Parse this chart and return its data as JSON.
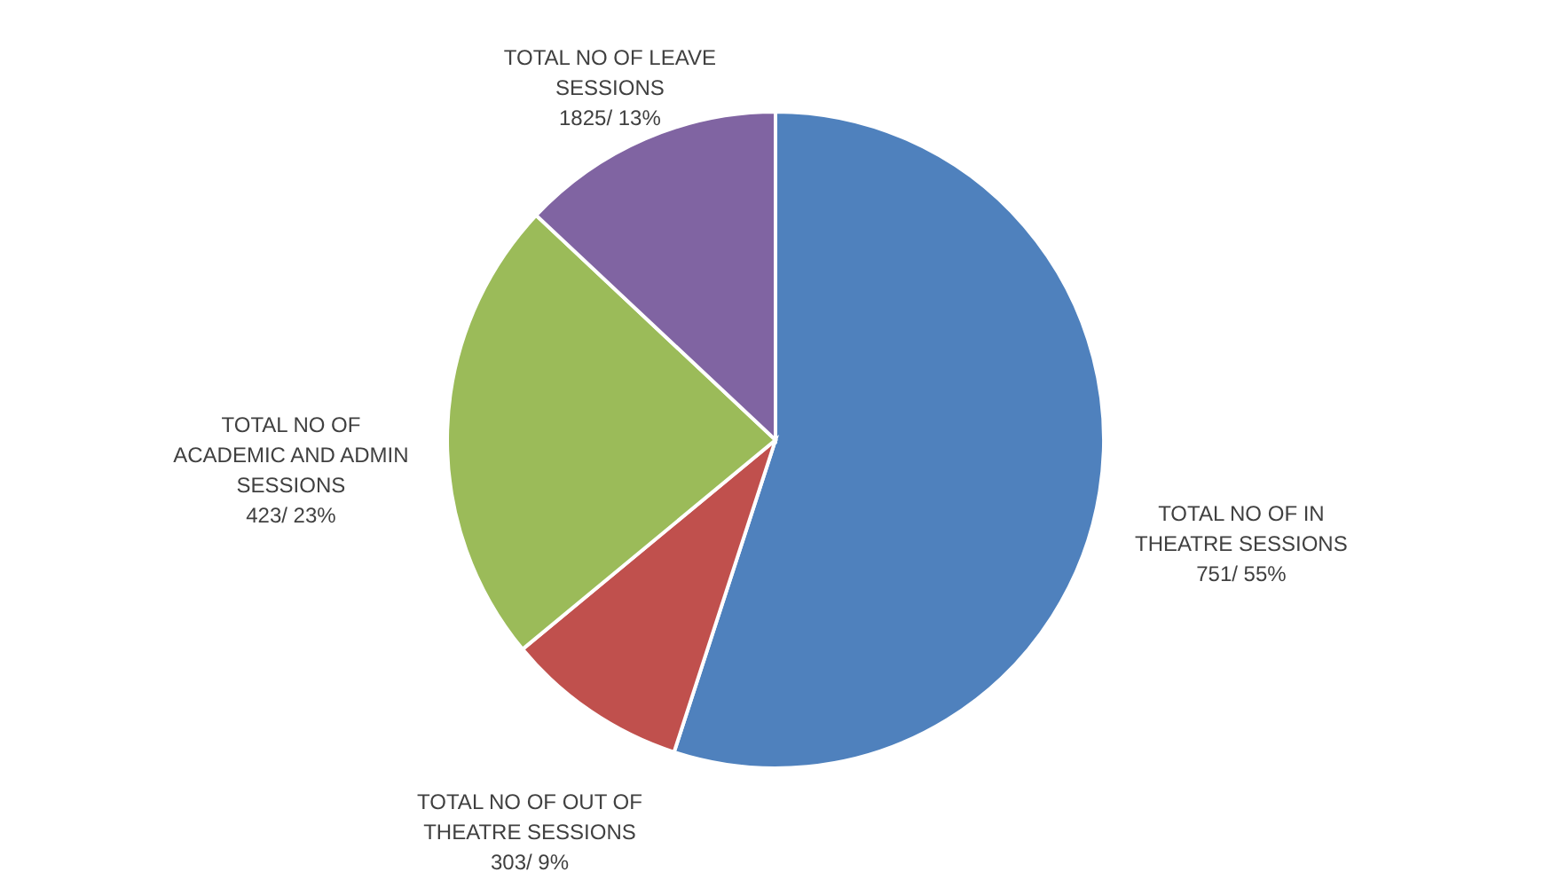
{
  "chart_data": {
    "type": "pie",
    "categories": [
      "TOTAL NO OF IN THEATRE SESSIONS",
      "TOTAL NO OF OUT OF THEATRE SESSIONS",
      "TOTAL NO OF ACADEMIC AND ADMIN SESSIONS",
      "TOTAL NO OF LEAVE SESSIONS"
    ],
    "values": [
      55,
      9,
      23,
      13
    ],
    "value_labels": [
      "751/ 55%",
      "303/ 9%",
      "423/ 23%",
      "1825/ 13%"
    ],
    "colors": [
      "#4f81bd",
      "#c0504d",
      "#9bbb59",
      "#8064a2"
    ],
    "legend": false
  }
}
